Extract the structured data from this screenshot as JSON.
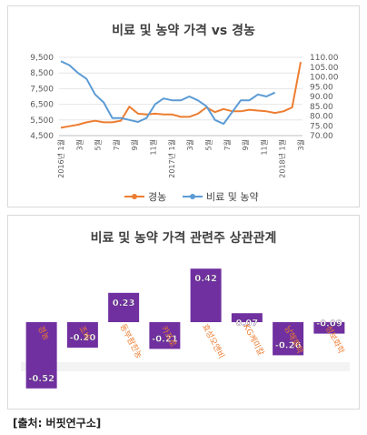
{
  "chart_data": [
    {
      "type": "line",
      "title": "비료 및 농약 가격 vs 경농",
      "x_tick_labels": [
        "2016년 1월",
        "3월",
        "5월",
        "7월",
        "9월",
        "11월",
        "2017년 1월",
        "3월",
        "5월",
        "7월",
        "9월",
        "11월",
        "2018년 1월",
        "3월"
      ],
      "y_left": {
        "ticks": [
          "4,500",
          "5,500",
          "6,500",
          "7,500",
          "8,500",
          "9,500"
        ],
        "lim": [
          4500,
          9500
        ]
      },
      "y_right": {
        "ticks": [
          "70.00",
          "75.00",
          "80.00",
          "85.00",
          "90.00",
          "95.00",
          "100.00",
          "105.00",
          "110.00"
        ],
        "lim": [
          70,
          110
        ]
      },
      "series": [
        {
          "name": "경농",
          "axis": "left",
          "color": "#ED7D31",
          "values": [
            5000,
            5100,
            5200,
            5350,
            5450,
            5350,
            5350,
            5450,
            6350,
            5900,
            5850,
            5900,
            5850,
            5850,
            5700,
            5700,
            5900,
            6300,
            6000,
            6200,
            6050,
            6050,
            6150,
            6100,
            6050,
            5950,
            6050,
            6300,
            9200
          ]
        },
        {
          "name": "비료 및 농약",
          "axis": "right",
          "color": "#5B9BD5",
          "values": [
            108,
            106,
            102,
            99,
            91,
            87,
            79,
            79,
            78,
            77,
            79,
            86,
            89,
            88,
            88,
            90,
            88,
            85,
            78,
            76,
            82,
            88,
            88,
            91,
            90,
            92
          ]
        }
      ],
      "legend_position": "bottom"
    },
    {
      "type": "bar",
      "title": "비료 및 농약 가격 관련주 상관관계",
      "categories": [
        "경농",
        "조비",
        "동부팜한농",
        "카프로",
        "효성오앤비",
        "KG케미칼",
        "남해화학",
        "성보화학"
      ],
      "category_display": [
        "경농",
        "조비",
        "동부팜한농",
        "카프로",
        "효성오앤비",
        "KG케미칼",
        "남해화학",
        "성보화학"
      ],
      "values": [
        -0.52,
        -0.2,
        0.23,
        -0.21,
        0.42,
        0.07,
        -0.26,
        -0.09
      ],
      "value_labels": [
        "-0.52",
        "-0.20",
        "0.23",
        "-0.21",
        "0.42",
        "0.07",
        "-0.26",
        "-0.09"
      ],
      "bar_color": "#7030A0",
      "category_label_color": "#ED7D31"
    }
  ],
  "source": "[출처: 버핏연구소]"
}
